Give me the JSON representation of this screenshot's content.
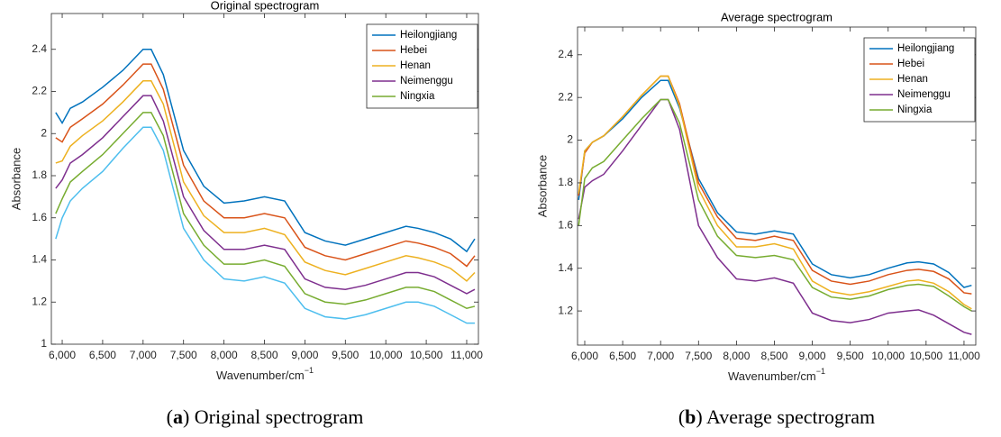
{
  "chart_data": [
    {
      "type": "line",
      "title": "Original spectrogram",
      "xlabel": "Wavenumber/cm",
      "xlabel_superscript": "−1",
      "ylabel": "Absorbance",
      "caption": [
        "(",
        "a",
        ") Original spectrogram"
      ],
      "x": [
        5920,
        6000,
        6100,
        6250,
        6500,
        6750,
        7000,
        7100,
        7250,
        7500,
        7750,
        8000,
        8250,
        8500,
        8750,
        9000,
        9250,
        9500,
        9750,
        10000,
        10250,
        10400,
        10600,
        10800,
        11000,
        11100
      ],
      "xlim": [
        5866,
        11145
      ],
      "xticks": [
        {
          "value": 6000,
          "label": "6,000"
        },
        {
          "value": 6500,
          "label": "6,500"
        },
        {
          "value": 7000,
          "label": "7,000"
        },
        {
          "value": 7500,
          "label": "7,500"
        },
        {
          "value": 8000,
          "label": "8,000"
        },
        {
          "value": 8500,
          "label": "8,500"
        },
        {
          "value": 9000,
          "label": "9,000"
        },
        {
          "value": 9500,
          "label": "9,500"
        },
        {
          "value": 10000,
          "label": "10,000"
        },
        {
          "value": 10500,
          "label": "10,500"
        },
        {
          "value": 11000,
          "label": "11,000"
        }
      ],
      "ylim": [
        1,
        2.57
      ],
      "yticks": [
        1,
        1.2,
        1.4,
        1.6,
        1.8,
        2,
        2.2,
        2.4
      ],
      "grid": false,
      "legend": "upper-right",
      "series": [
        {
          "name": "Heilongjiang",
          "color": "#0072bd",
          "values": [
            2.1,
            2.05,
            2.12,
            2.15,
            2.22,
            2.3,
            2.4,
            2.4,
            2.28,
            1.92,
            1.75,
            1.67,
            1.68,
            1.7,
            1.68,
            1.53,
            1.49,
            1.47,
            1.5,
            1.53,
            1.56,
            1.55,
            1.53,
            1.5,
            1.44,
            1.5
          ]
        },
        {
          "name": "Hebei",
          "color": "#d95319",
          "values": [
            1.98,
            1.96,
            2.03,
            2.07,
            2.14,
            2.23,
            2.33,
            2.33,
            2.21,
            1.85,
            1.68,
            1.6,
            1.6,
            1.62,
            1.6,
            1.46,
            1.42,
            1.4,
            1.43,
            1.46,
            1.49,
            1.48,
            1.46,
            1.43,
            1.37,
            1.42
          ]
        },
        {
          "name": "Henan",
          "color": "#edb120",
          "values": [
            1.86,
            1.87,
            1.94,
            1.99,
            2.06,
            2.15,
            2.25,
            2.25,
            2.14,
            1.77,
            1.61,
            1.53,
            1.53,
            1.55,
            1.52,
            1.39,
            1.35,
            1.33,
            1.36,
            1.39,
            1.42,
            1.41,
            1.39,
            1.36,
            1.3,
            1.34
          ]
        },
        {
          "name": "Neimenggu",
          "color": "#7e2f8e",
          "values": [
            1.74,
            1.78,
            1.86,
            1.9,
            1.98,
            2.08,
            2.18,
            2.18,
            2.06,
            1.7,
            1.54,
            1.45,
            1.45,
            1.47,
            1.45,
            1.31,
            1.27,
            1.26,
            1.28,
            1.31,
            1.34,
            1.34,
            1.32,
            1.28,
            1.24,
            1.26
          ]
        },
        {
          "name": "Ningxia",
          "color": "#77ac30",
          "values": [
            1.62,
            1.69,
            1.77,
            1.82,
            1.9,
            2.0,
            2.1,
            2.1,
            1.99,
            1.62,
            1.47,
            1.38,
            1.38,
            1.4,
            1.37,
            1.24,
            1.2,
            1.19,
            1.21,
            1.24,
            1.27,
            1.27,
            1.25,
            1.21,
            1.17,
            1.18
          ]
        },
        {
          "color": "#4dbeee",
          "values": [
            1.5,
            1.6,
            1.68,
            1.74,
            1.82,
            1.93,
            2.03,
            2.03,
            1.92,
            1.55,
            1.4,
            1.31,
            1.3,
            1.32,
            1.29,
            1.17,
            1.13,
            1.12,
            1.14,
            1.17,
            1.2,
            1.2,
            1.18,
            1.14,
            1.1,
            1.1
          ]
        }
      ]
    },
    {
      "type": "line",
      "title": "Average spectrogram",
      "xlabel": "Wavenumber/cm",
      "xlabel_superscript": "−1",
      "ylabel": "Absorbance",
      "caption": [
        "(",
        "b",
        ") Average spectrogram"
      ],
      "x": [
        5920,
        6000,
        6100,
        6250,
        6500,
        6750,
        7000,
        7100,
        7250,
        7500,
        7750,
        8000,
        8250,
        8500,
        8750,
        9000,
        9250,
        9500,
        9750,
        10000,
        10250,
        10400,
        10600,
        10800,
        11000,
        11100
      ],
      "xlim": [
        5905,
        11155
      ],
      "xticks": [
        {
          "value": 6000,
          "label": "6,000"
        },
        {
          "value": 6500,
          "label": "6,500"
        },
        {
          "value": 7000,
          "label": "7,000"
        },
        {
          "value": 7500,
          "label": "7,500"
        },
        {
          "value": 8000,
          "label": "8,000"
        },
        {
          "value": 8500,
          "label": "8,500"
        },
        {
          "value": 9000,
          "label": "9,000"
        },
        {
          "value": 9500,
          "label": "9,500"
        },
        {
          "value": 10000,
          "label": "10,000"
        },
        {
          "value": 10500,
          "label": "10,500"
        },
        {
          "value": 11000,
          "label": "11,000"
        }
      ],
      "ylim": [
        1.04,
        2.53
      ],
      "yticks": [
        1.2,
        1.4,
        1.6,
        1.8,
        2,
        2.2,
        2.4
      ],
      "grid": false,
      "legend": "upper-right",
      "series": [
        {
          "name": "Heilongjiang",
          "color": "#0072bd",
          "values": [
            1.72,
            1.95,
            1.99,
            2.02,
            2.1,
            2.2,
            2.28,
            2.28,
            2.15,
            1.82,
            1.66,
            1.57,
            1.56,
            1.575,
            1.56,
            1.42,
            1.37,
            1.355,
            1.37,
            1.4,
            1.425,
            1.43,
            1.42,
            1.38,
            1.31,
            1.32
          ]
        },
        {
          "name": "Hebei",
          "color": "#d95319",
          "values": [
            1.74,
            1.94,
            1.99,
            2.02,
            2.11,
            2.21,
            2.3,
            2.3,
            2.17,
            1.8,
            1.64,
            1.54,
            1.53,
            1.55,
            1.53,
            1.39,
            1.34,
            1.325,
            1.34,
            1.37,
            1.39,
            1.395,
            1.385,
            1.35,
            1.285,
            1.28
          ]
        },
        {
          "name": "Henan",
          "color": "#edb120",
          "values": [
            1.75,
            1.95,
            1.99,
            2.02,
            2.11,
            2.21,
            2.3,
            2.3,
            2.16,
            1.77,
            1.6,
            1.5,
            1.5,
            1.515,
            1.49,
            1.34,
            1.29,
            1.275,
            1.29,
            1.315,
            1.34,
            1.345,
            1.33,
            1.29,
            1.23,
            1.21
          ]
        },
        {
          "name": "Neimenggu",
          "color": "#7e2f8e",
          "values": [
            1.63,
            1.78,
            1.81,
            1.84,
            1.95,
            2.07,
            2.19,
            2.19,
            2.05,
            1.6,
            1.45,
            1.35,
            1.34,
            1.355,
            1.33,
            1.19,
            1.155,
            1.145,
            1.16,
            1.19,
            1.2,
            1.205,
            1.18,
            1.14,
            1.1,
            1.09
          ]
        },
        {
          "name": "Ningxia",
          "color": "#77ac30",
          "values": [
            1.6,
            1.82,
            1.87,
            1.9,
            2.0,
            2.1,
            2.19,
            2.19,
            2.08,
            1.72,
            1.55,
            1.46,
            1.45,
            1.46,
            1.44,
            1.31,
            1.265,
            1.255,
            1.27,
            1.3,
            1.32,
            1.325,
            1.315,
            1.27,
            1.22,
            1.2
          ]
        }
      ]
    }
  ]
}
